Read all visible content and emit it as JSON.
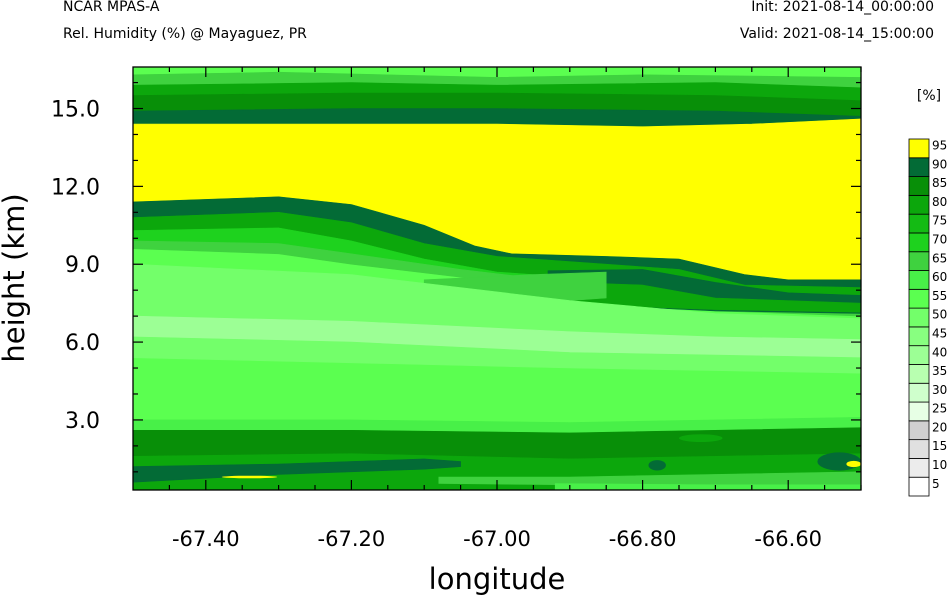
{
  "header": {
    "model": "NCAR MPAS-A",
    "subtitle": "Rel. Humidity (%) @ Mayaguez, PR",
    "init": "Init: 2021-08-14_00:00:00",
    "valid": "Valid: 2021-08-14_15:00:00"
  },
  "chart_data": {
    "type": "heatmap",
    "title": "Rel. Humidity (%) @ Mayaguez, PR",
    "xlabel": "longitude",
    "ylabel": "height (km)",
    "xlim": [
      -67.5,
      -66.5
    ],
    "ylim": [
      0.3,
      16.6
    ],
    "xticks": [
      -67.4,
      -67.2,
      -67.0,
      -66.8,
      -66.6
    ],
    "xtick_labels": [
      "-67.40",
      "-67.20",
      "-67.00",
      "-66.80",
      "-66.60"
    ],
    "yticks": [
      3.0,
      6.0,
      9.0,
      12.0,
      15.0
    ],
    "ytick_labels": [
      "3.0",
      "6.0",
      "9.0",
      "12.0",
      "15.0"
    ],
    "colorbar": {
      "unit_label": "[%]",
      "levels": [
        "5",
        "10",
        "15",
        "20",
        "25",
        "30",
        "35",
        "40",
        "45",
        "50",
        "55",
        "60",
        "65",
        "70",
        "75",
        "80",
        "85",
        "90",
        "95"
      ],
      "colors": [
        "#ffffff",
        "#ececec",
        "#e0e0e0",
        "#d0d0d0",
        "#e7ffe5",
        "#cfffcc",
        "#b8ffb0",
        "#9cff95",
        "#88ff80",
        "#73ff6a",
        "#5bff50",
        "#48f048",
        "#3fd23f",
        "#1ed21e",
        "#14bb14",
        "#0ca70c",
        "#088f08",
        "#036b36",
        "#ffff00"
      ]
    },
    "layers": [
      {
        "rh": 55,
        "upper": [
          [
            -67.5,
            16.6
          ],
          [
            -66.5,
            16.6
          ]
        ],
        "lower": [
          [
            -67.5,
            0.3
          ],
          [
            -66.5,
            0.3
          ]
        ]
      },
      {
        "rh": 65,
        "upper": [
          [
            -67.5,
            16.3
          ],
          [
            -67.3,
            16.4
          ],
          [
            -67.0,
            16.2
          ],
          [
            -66.8,
            16.3
          ],
          [
            -66.5,
            16.2
          ]
        ],
        "lower": [
          [
            -67.5,
            15.9
          ],
          [
            -67.2,
            16.0
          ],
          [
            -67.0,
            15.9
          ],
          [
            -66.7,
            16.0
          ],
          [
            -66.5,
            15.8
          ]
        ]
      },
      {
        "rh": 80,
        "upper": [
          [
            -67.5,
            15.9
          ],
          [
            -67.2,
            16.0
          ],
          [
            -67.0,
            15.9
          ],
          [
            -66.7,
            16.0
          ],
          [
            -66.5,
            15.8
          ]
        ],
        "lower": [
          [
            -67.5,
            15.5
          ],
          [
            -67.2,
            15.6
          ],
          [
            -67.0,
            15.6
          ],
          [
            -66.7,
            15.5
          ],
          [
            -66.5,
            15.3
          ]
        ]
      },
      {
        "rh": 85,
        "upper": [
          [
            -67.5,
            15.5
          ],
          [
            -67.2,
            15.6
          ],
          [
            -67.0,
            15.6
          ],
          [
            -66.7,
            15.5
          ],
          [
            -66.5,
            15.3
          ]
        ],
        "lower": [
          [
            -67.5,
            14.9
          ],
          [
            -67.2,
            15.0
          ],
          [
            -67.0,
            15.0
          ],
          [
            -66.7,
            14.9
          ],
          [
            -66.5,
            14.7
          ]
        ]
      },
      {
        "rh": 90,
        "upper": [
          [
            -67.5,
            14.9
          ],
          [
            -67.2,
            15.0
          ],
          [
            -67.0,
            15.0
          ],
          [
            -66.7,
            14.9
          ],
          [
            -66.5,
            14.7
          ]
        ],
        "lower": [
          [
            -67.5,
            14.4
          ],
          [
            -67.0,
            14.4
          ],
          [
            -66.8,
            14.3
          ],
          [
            -66.65,
            14.4
          ],
          [
            -66.5,
            14.6
          ]
        ]
      },
      {
        "rh": 95,
        "upper": [
          [
            -67.5,
            14.4
          ],
          [
            -67.0,
            14.4
          ],
          [
            -66.8,
            14.3
          ],
          [
            -66.65,
            14.4
          ],
          [
            -66.5,
            14.6
          ]
        ],
        "lower": [
          [
            -67.5,
            11.4
          ],
          [
            -67.3,
            11.6
          ],
          [
            -67.2,
            11.3
          ],
          [
            -67.1,
            10.5
          ],
          [
            -67.03,
            9.7
          ],
          [
            -66.98,
            9.4
          ],
          [
            -66.85,
            9.3
          ],
          [
            -66.75,
            9.2
          ],
          [
            -66.66,
            8.6
          ],
          [
            -66.6,
            8.4
          ],
          [
            -66.5,
            8.4
          ]
        ]
      },
      {
        "rh": 90,
        "upper": [
          [
            -67.5,
            11.4
          ],
          [
            -67.3,
            11.6
          ],
          [
            -67.2,
            11.3
          ],
          [
            -67.1,
            10.5
          ],
          [
            -67.03,
            9.7
          ],
          [
            -66.98,
            9.4
          ],
          [
            -66.85,
            9.3
          ],
          [
            -66.75,
            9.2
          ],
          [
            -66.66,
            8.6
          ],
          [
            -66.6,
            8.4
          ],
          [
            -66.5,
            8.4
          ]
        ],
        "lower": [
          [
            -67.5,
            10.8
          ],
          [
            -67.3,
            11.0
          ],
          [
            -67.2,
            10.6
          ],
          [
            -67.1,
            9.8
          ],
          [
            -67.0,
            9.3
          ],
          [
            -66.85,
            9.0
          ],
          [
            -66.75,
            8.8
          ],
          [
            -66.66,
            8.2
          ],
          [
            -66.5,
            8.1
          ]
        ]
      },
      {
        "rh": 80,
        "upper": [
          [
            -67.5,
            10.8
          ],
          [
            -67.3,
            11.0
          ],
          [
            -67.2,
            10.6
          ],
          [
            -67.1,
            9.8
          ],
          [
            -67.0,
            9.3
          ],
          [
            -66.85,
            9.0
          ],
          [
            -66.75,
            8.8
          ],
          [
            -66.66,
            8.2
          ],
          [
            -66.5,
            8.1
          ]
        ],
        "lower": [
          [
            -67.5,
            10.3
          ],
          [
            -67.3,
            10.4
          ],
          [
            -67.2,
            9.9
          ],
          [
            -67.1,
            9.2
          ],
          [
            -67.0,
            8.7
          ],
          [
            -66.85,
            8.4
          ],
          [
            -66.7,
            7.8
          ],
          [
            -66.5,
            7.6
          ]
        ]
      },
      {
        "rh": 70,
        "upper": [
          [
            -67.5,
            10.3
          ],
          [
            -67.3,
            10.4
          ],
          [
            -67.2,
            9.9
          ],
          [
            -67.1,
            9.2
          ],
          [
            -67.0,
            8.7
          ],
          [
            -66.85,
            8.4
          ],
          [
            -66.7,
            7.8
          ],
          [
            -66.5,
            7.6
          ]
        ],
        "lower": [
          [
            -67.5,
            9.9
          ],
          [
            -67.3,
            9.8
          ],
          [
            -67.2,
            9.4
          ],
          [
            -67.05,
            8.8
          ],
          [
            -66.9,
            8.3
          ],
          [
            -66.7,
            7.4
          ],
          [
            -66.5,
            7.3
          ]
        ]
      },
      {
        "rh": 65,
        "upper": [
          [
            -67.5,
            9.9
          ],
          [
            -67.3,
            9.8
          ],
          [
            -67.2,
            9.4
          ],
          [
            -67.05,
            8.8
          ],
          [
            -66.9,
            8.3
          ],
          [
            -66.7,
            7.4
          ],
          [
            -66.5,
            7.3
          ]
        ],
        "lower": [
          [
            -67.5,
            9.6
          ],
          [
            -67.3,
            9.4
          ],
          [
            -67.2,
            9.0
          ],
          [
            -67.05,
            8.5
          ],
          [
            -66.9,
            8.0
          ],
          [
            -66.7,
            7.2
          ],
          [
            -66.5,
            7.0
          ]
        ]
      },
      {
        "rh": 90,
        "upper": [
          [
            -66.93,
            8.75
          ],
          [
            -66.8,
            8.8
          ],
          [
            -66.7,
            8.3
          ],
          [
            -66.6,
            7.9
          ],
          [
            -66.5,
            7.8
          ]
        ],
        "lower": [
          [
            -66.93,
            7.9
          ],
          [
            -66.85,
            7.4
          ],
          [
            -66.7,
            7.2
          ],
          [
            -66.5,
            7.1
          ]
        ]
      },
      {
        "rh": 80,
        "upper": [
          [
            -66.9,
            8.3
          ],
          [
            -66.8,
            8.2
          ],
          [
            -66.7,
            7.7
          ],
          [
            -66.5,
            7.5
          ]
        ],
        "lower": [
          [
            -66.9,
            7.6
          ],
          [
            -66.85,
            7.4
          ],
          [
            -66.7,
            7.25
          ],
          [
            -66.5,
            7.15
          ]
        ]
      },
      {
        "rh": 65,
        "upper": [
          [
            -67.1,
            8.4
          ],
          [
            -66.95,
            8.6
          ],
          [
            -66.85,
            8.7
          ]
        ],
        "lower": [
          [
            -67.1,
            7.1
          ],
          [
            -66.95,
            7.5
          ],
          [
            -66.85,
            7.7
          ]
        ]
      },
      {
        "rh": 50,
        "upper": [
          [
            -67.5,
            9.0
          ],
          [
            -67.2,
            8.6
          ],
          [
            -66.9,
            7.6
          ],
          [
            -66.7,
            7.1
          ],
          [
            -66.5,
            6.9
          ]
        ],
        "lower": [
          [
            -67.5,
            7.0
          ],
          [
            -67.2,
            6.8
          ],
          [
            -66.9,
            6.4
          ],
          [
            -66.7,
            6.2
          ],
          [
            -66.5,
            6.1
          ]
        ]
      },
      {
        "rh": 40,
        "upper": [
          [
            -67.5,
            7.0
          ],
          [
            -67.2,
            6.8
          ],
          [
            -66.9,
            6.4
          ],
          [
            -66.7,
            6.2
          ],
          [
            -66.5,
            6.1
          ]
        ],
        "lower": [
          [
            -67.5,
            6.2
          ],
          [
            -67.2,
            6.0
          ],
          [
            -66.9,
            5.6
          ],
          [
            -66.7,
            5.5
          ],
          [
            -66.5,
            5.4
          ]
        ]
      },
      {
        "rh": 50,
        "upper": [
          [
            -67.5,
            6.2
          ],
          [
            -67.2,
            6.0
          ],
          [
            -66.9,
            5.6
          ],
          [
            -66.7,
            5.5
          ],
          [
            -66.5,
            5.4
          ]
        ],
        "lower": [
          [
            -67.5,
            5.4
          ],
          [
            -67.2,
            5.2
          ],
          [
            -66.9,
            5.0
          ],
          [
            -66.7,
            4.9
          ],
          [
            -66.5,
            4.8
          ]
        ]
      },
      {
        "rh": 60,
        "upper": [
          [
            -67.5,
            3.0
          ],
          [
            -67.2,
            3.0
          ],
          [
            -66.9,
            2.9
          ],
          [
            -66.7,
            3.0
          ],
          [
            -66.5,
            3.1
          ]
        ],
        "lower": [
          [
            -67.5,
            2.6
          ],
          [
            -67.2,
            2.6
          ],
          [
            -66.9,
            2.5
          ],
          [
            -66.7,
            2.6
          ],
          [
            -66.5,
            2.7
          ]
        ]
      },
      {
        "rh": 85,
        "upper": [
          [
            -67.5,
            2.6
          ],
          [
            -67.2,
            2.6
          ],
          [
            -66.9,
            2.5
          ],
          [
            -66.7,
            2.6
          ],
          [
            -66.5,
            2.7
          ]
        ],
        "lower": [
          [
            -67.5,
            1.6
          ],
          [
            -67.2,
            1.7
          ],
          [
            -66.9,
            1.5
          ],
          [
            -66.7,
            1.6
          ],
          [
            -66.5,
            1.7
          ]
        ]
      },
      {
        "rh": 80,
        "upper": [
          [
            -67.5,
            1.6
          ],
          [
            -67.2,
            1.7
          ],
          [
            -66.9,
            1.5
          ],
          [
            -66.7,
            1.6
          ],
          [
            -66.5,
            1.7
          ]
        ],
        "lower": [
          [
            -67.5,
            0.3
          ],
          [
            -66.5,
            0.3
          ]
        ]
      },
      {
        "rh": 90,
        "upper": [
          [
            -67.5,
            1.2
          ],
          [
            -67.3,
            1.3
          ],
          [
            -67.1,
            1.5
          ],
          [
            -67.05,
            1.4
          ]
        ],
        "lower": [
          [
            -67.5,
            0.6
          ],
          [
            -67.3,
            0.9
          ],
          [
            -67.1,
            1.1
          ],
          [
            -67.05,
            1.2
          ]
        ]
      },
      {
        "rh": 65,
        "upper": [
          [
            -67.08,
            0.8
          ],
          [
            -66.9,
            0.8
          ],
          [
            -66.7,
            0.9
          ],
          [
            -66.5,
            1.0
          ]
        ],
        "lower": [
          [
            -67.08,
            0.55
          ],
          [
            -66.9,
            0.5
          ],
          [
            -66.7,
            0.45
          ],
          [
            -66.5,
            0.4
          ]
        ]
      },
      {
        "rh": 60,
        "upper": [
          [
            -66.92,
            0.55
          ],
          [
            -66.7,
            0.5
          ],
          [
            -66.5,
            0.5
          ]
        ],
        "lower": [
          [
            -66.92,
            0.3
          ],
          [
            -66.5,
            0.3
          ]
        ]
      }
    ],
    "blobs": [
      {
        "rh": 90,
        "lon": -66.53,
        "height": 1.4,
        "rx_deg": 0.03,
        "ry_km": 0.35
      },
      {
        "rh": 95,
        "lon": -66.51,
        "height": 1.3,
        "rx_deg": 0.01,
        "ry_km": 0.12
      },
      {
        "rh": 90,
        "lon": -66.78,
        "height": 1.25,
        "rx_deg": 0.012,
        "ry_km": 0.2
      },
      {
        "rh": 80,
        "lon": -66.72,
        "height": 2.3,
        "rx_deg": 0.03,
        "ry_km": 0.15
      },
      {
        "rh": 95,
        "lon": -67.34,
        "height": 0.8,
        "rx_deg": 0.038,
        "ry_km": 0.05
      }
    ]
  }
}
